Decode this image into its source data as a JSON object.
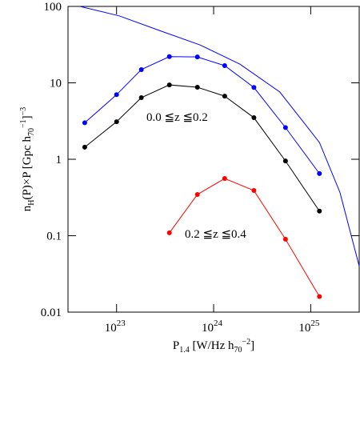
{
  "chart_data": {
    "type": "line",
    "log_x": true,
    "log_y": true,
    "xlim": [
      3.16e+22,
      3.16e+25
    ],
    "ylim": [
      0.01,
      100
    ],
    "xticks": [
      {
        "value": 1e+23,
        "label": "10",
        "exponent": "23"
      },
      {
        "value": 1e+24,
        "label": "10",
        "exponent": "24"
      },
      {
        "value": 1e+25,
        "label": "10",
        "exponent": "25"
      }
    ],
    "yticks": [
      0.01,
      0.1,
      1,
      10,
      100
    ],
    "xlabel": [
      {
        "text": "P",
        "style": "normal"
      },
      {
        "text": "1.4",
        "style": "sub"
      },
      {
        "text": " [W/Hz h",
        "style": "normal"
      },
      {
        "text": "70",
        "style": "sub"
      },
      {
        "text": "−2",
        "style": "sup"
      },
      {
        "text": "]",
        "style": "normal"
      }
    ],
    "ylabel": [
      {
        "text": "n",
        "style": "normal"
      },
      {
        "text": "H",
        "style": "sub"
      },
      {
        "text": "(P)×P [Gpc h",
        "style": "normal"
      },
      {
        "text": "70",
        "style": "sub"
      },
      {
        "text": "−1",
        "style": "sup"
      },
      {
        "text": "]",
        "style": "normal"
      },
      {
        "text": "−3",
        "style": "sup"
      }
    ],
    "series": [
      {
        "color": "#0000ff",
        "markers": true,
        "x": [
          4.7e+22,
          1e+23,
          1.8e+23,
          3.5e+23,
          6.8e+23,
          1.3e+24,
          2.6e+24,
          5.5e+24,
          1.23e+25
        ],
        "values": [
          3.0,
          7.0,
          14.9,
          22,
          21.8,
          16.8,
          8.7,
          2.6,
          0.65
        ]
      },
      {
        "color": "#000000",
        "markers": true,
        "x": [
          4.7e+22,
          1e+23,
          1.8e+23,
          3.5e+23,
          6.8e+23,
          1.3e+24,
          2.6e+24,
          5.5e+24,
          1.23e+25
        ],
        "values": [
          1.44,
          3.1,
          6.4,
          9.4,
          8.75,
          6.7,
          3.5,
          0.95,
          0.21
        ]
      },
      {
        "color": "#ff0000",
        "markers": true,
        "x": [
          3.5e+23,
          6.8e+23,
          1.3e+24,
          2.6e+24,
          5.5e+24,
          1.23e+25
        ],
        "values": [
          0.109,
          0.346,
          0.56,
          0.39,
          0.09,
          0.016
        ]
      },
      {
        "color": "#0000ff",
        "markers": false,
        "x": [
          4.2e+22,
          1.07e+23,
          2.75e+23,
          7.2e+23,
          1.86e+24,
          4.8e+24,
          1.23e+25,
          2e+25,
          3.16e+25
        ],
        "values": [
          100,
          75,
          48.5,
          31.4,
          17.6,
          7.6,
          1.66,
          0.37,
          0.04
        ]
      }
    ],
    "annotations": [
      {
        "text": "0.0 ≦z ≦0.2",
        "color": "#000000"
      },
      {
        "text": "0.2 ≦z ≦0.4",
        "color": "#ff0000"
      }
    ]
  }
}
